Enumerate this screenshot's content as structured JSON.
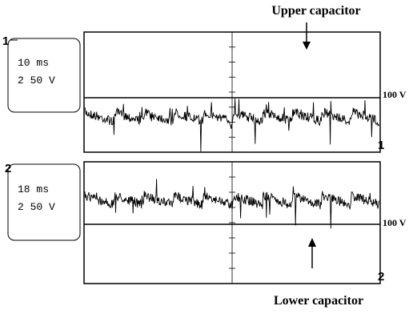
{
  "panels": [
    {
      "channel": "1",
      "time_div": "10 ms",
      "volt_div": "2 50 V",
      "reference": "100 V",
      "label": "Upper capacitor",
      "marker": "1"
    },
    {
      "channel": "2",
      "time_div": "18 ms",
      "volt_div": "2 50 V",
      "reference": "100 V",
      "label": "Lower capacitor",
      "marker": "2"
    }
  ]
}
